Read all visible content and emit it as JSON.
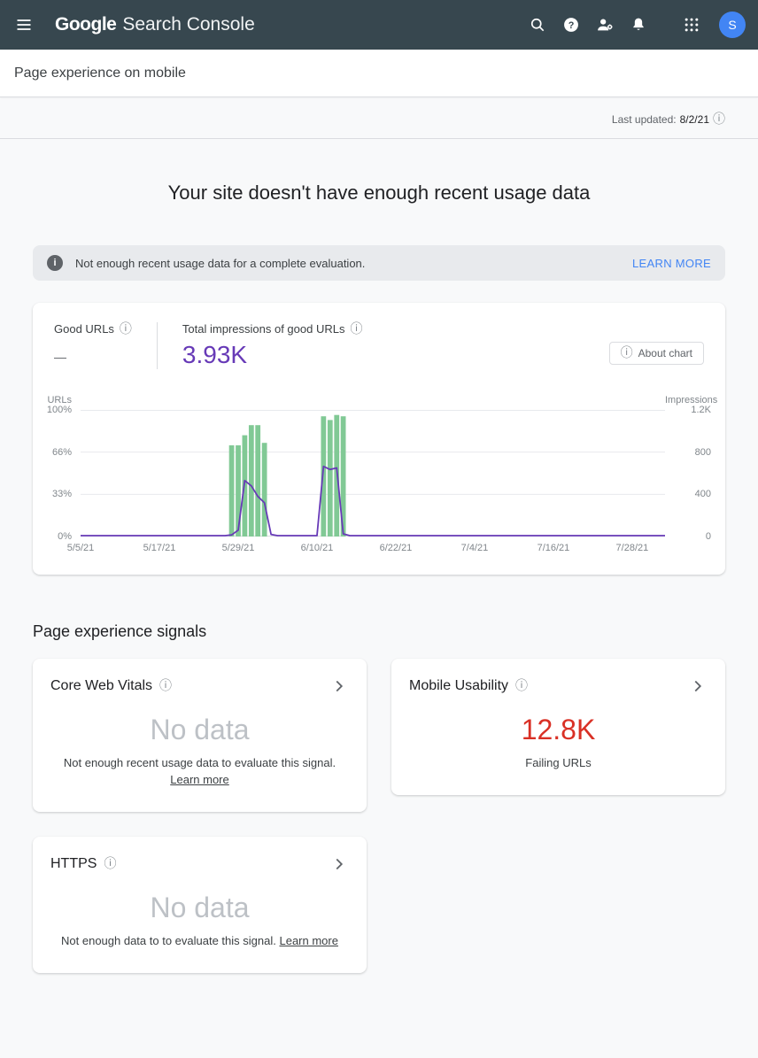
{
  "appbar": {
    "logo_google": "Google",
    "logo_product": "Search Console",
    "avatar_letter": "S",
    "icons": [
      "menu-icon",
      "search-icon",
      "help-icon",
      "manage-users-icon",
      "notifications-icon",
      "apps-grid-icon"
    ]
  },
  "subbar": {
    "title": "Page experience on mobile"
  },
  "meta": {
    "last_updated_label": "Last updated:",
    "last_updated_value": "8/2/21"
  },
  "hero": {
    "title": "Your site doesn't have enough recent usage data"
  },
  "banner": {
    "message": "Not enough recent usage data for a complete evaluation.",
    "action": "LEARN MORE",
    "action_color": "#4285f4"
  },
  "chart_card": {
    "good_urls_label": "Good URLs",
    "good_urls_value": "—",
    "impressions_label": "Total impressions of good URLs",
    "impressions_value": "3.93K",
    "impressions_color": "#673ab7",
    "about_chart_label": "About chart"
  },
  "chart_data": {
    "type": "bar+line",
    "x_domain_days": 89,
    "x_ticks": [
      {
        "day": 0,
        "label": "5/5/21"
      },
      {
        "day": 12,
        "label": "5/17/21"
      },
      {
        "day": 24,
        "label": "5/29/21"
      },
      {
        "day": 36,
        "label": "6/10/21"
      },
      {
        "day": 48,
        "label": "6/22/21"
      },
      {
        "day": 60,
        "label": "7/4/21"
      },
      {
        "day": 72,
        "label": "7/16/21"
      },
      {
        "day": 84,
        "label": "7/28/21"
      }
    ],
    "left_axis": {
      "title": "URLs",
      "ticks": [
        "100%",
        "66%",
        "33%",
        "0%"
      ],
      "max": 100
    },
    "right_axis": {
      "title": "Impressions",
      "ticks": [
        "1.2K",
        "800",
        "400",
        "0"
      ],
      "max": 1200
    },
    "bars": {
      "name": "Good URLs (% of URLs)",
      "color": "#81c995",
      "points": [
        [
          23,
          72
        ],
        [
          24,
          72
        ],
        [
          25,
          80
        ],
        [
          26,
          88
        ],
        [
          27,
          88
        ],
        [
          28,
          74
        ],
        [
          37,
          95
        ],
        [
          38,
          92
        ],
        [
          39,
          96
        ],
        [
          40,
          95
        ]
      ]
    },
    "line": {
      "name": "Impressions of good URLs",
      "color": "#673ab7",
      "points": [
        [
          0,
          8
        ],
        [
          22,
          8
        ],
        [
          23,
          15
        ],
        [
          24,
          60
        ],
        [
          25,
          530
        ],
        [
          26,
          480
        ],
        [
          27,
          380
        ],
        [
          28,
          320
        ],
        [
          29,
          20
        ],
        [
          30,
          8
        ],
        [
          36,
          8
        ],
        [
          37,
          665
        ],
        [
          38,
          635
        ],
        [
          39,
          650
        ],
        [
          40,
          25
        ],
        [
          41,
          8
        ],
        [
          89,
          8
        ]
      ]
    }
  },
  "signals": {
    "heading": "Page experience signals",
    "cards": [
      {
        "title": "Core Web Vitals",
        "value": "No data",
        "value_color": "#bdc1c6",
        "desc": "Not enough recent usage data to evaluate this signal.",
        "link": "Learn more"
      },
      {
        "title": "Mobile Usability",
        "value": "12.8K",
        "value_color": "#d93025",
        "desc": "Failing URLs",
        "link": ""
      },
      {
        "title": "HTTPS",
        "value": "No data",
        "value_color": "#bdc1c6",
        "desc": "Not enough data to to evaluate this signal.",
        "link": "Learn more"
      }
    ]
  }
}
